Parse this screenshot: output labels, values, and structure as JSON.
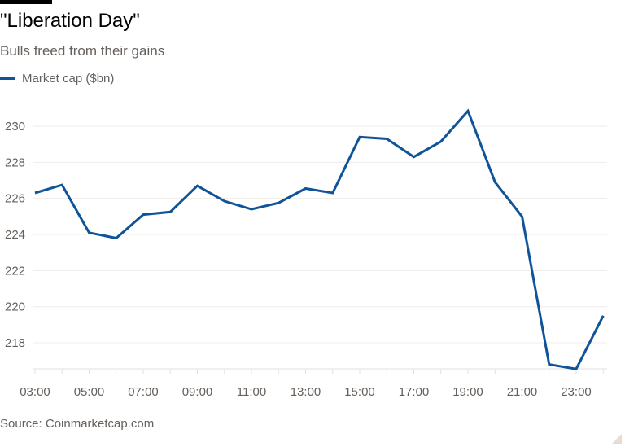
{
  "chart_data": {
    "type": "line",
    "title": "\"Liberation Day\"",
    "subtitle": "Bulls freed from their gains",
    "source": "Source: Coinmarketcap.com",
    "xlabel": "",
    "ylabel": "",
    "x": [
      "03:00",
      "04:00",
      "05:00",
      "06:00",
      "07:00",
      "08:00",
      "09:00",
      "10:00",
      "11:00",
      "12:00",
      "13:00",
      "14:00",
      "15:00",
      "16:00",
      "17:00",
      "18:00",
      "19:00",
      "20:00",
      "21:00",
      "22:00",
      "23:00",
      "00:00"
    ],
    "x_tick_labels": [
      "03:00",
      "05:00",
      "07:00",
      "09:00",
      "11:00",
      "13:00",
      "15:00",
      "17:00",
      "19:00",
      "21:00",
      "23:00"
    ],
    "y_tick_labels": [
      "218",
      "220",
      "222",
      "224",
      "226",
      "228",
      "230"
    ],
    "ylim": [
      216.55,
      231
    ],
    "grid": "horizontal",
    "legend_position": "top-left",
    "series": [
      {
        "name": "Market cap ($bn)",
        "color": "#0f5499",
        "values": [
          226.3,
          226.75,
          224.1,
          223.8,
          225.1,
          225.25,
          226.7,
          225.85,
          225.4,
          225.75,
          226.55,
          226.3,
          229.4,
          229.3,
          228.3,
          229.15,
          230.85,
          226.9,
          225.0,
          216.8,
          216.55,
          219.5
        ]
      }
    ]
  }
}
